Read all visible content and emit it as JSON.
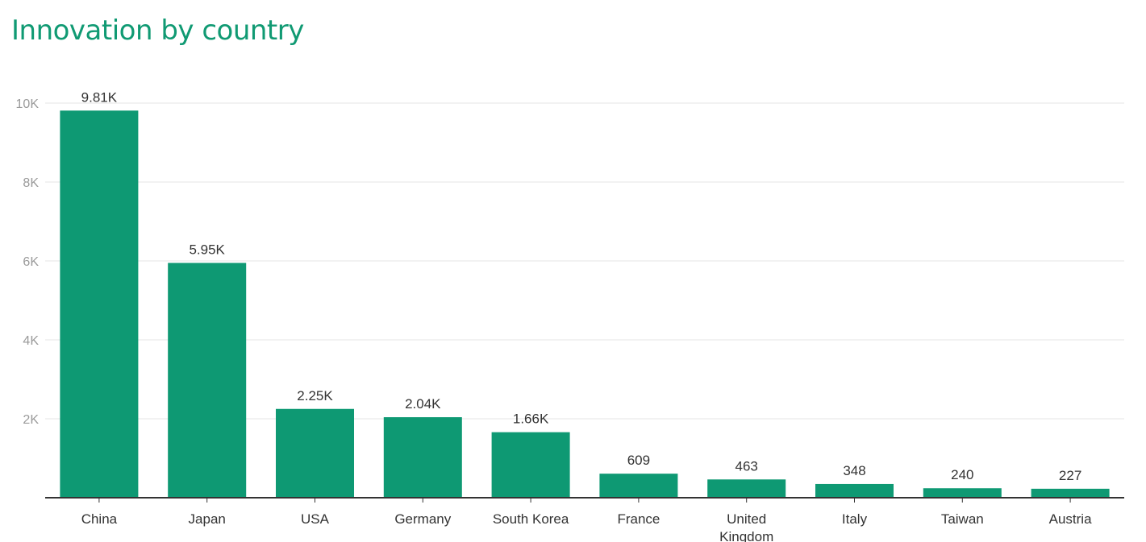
{
  "chart_data": {
    "type": "bar",
    "title": "Innovation by country",
    "categories": [
      "China",
      "Japan",
      "USA",
      "Germany",
      "South Korea",
      "France",
      "United Kingdom",
      "Italy",
      "Taiwan",
      "Austria"
    ],
    "x_tick_lines": [
      [
        "China"
      ],
      [
        "Japan"
      ],
      [
        "USA"
      ],
      [
        "Germany"
      ],
      [
        "South Korea"
      ],
      [
        "France"
      ],
      [
        "United",
        "Kingdom"
      ],
      [
        "Italy"
      ],
      [
        "Taiwan"
      ],
      [
        "Austria"
      ]
    ],
    "values": [
      9810,
      5950,
      2250,
      2040,
      1660,
      609,
      463,
      348,
      240,
      227
    ],
    "data_labels": [
      "9.81K",
      "5.95K",
      "2.25K",
      "2.04K",
      "1.66K",
      "609",
      "463",
      "348",
      "240",
      "227"
    ],
    "y_ticks": [
      2000,
      4000,
      6000,
      8000,
      10000
    ],
    "y_tick_labels": [
      "2K",
      "4K",
      "6K",
      "8K",
      "10K"
    ],
    "ylim": [
      0,
      10000
    ],
    "grid": true,
    "legend": "none",
    "colors": {
      "bar": "#0e9973",
      "title": "#109a73",
      "grid": "#e4e4e4",
      "axis": "#333333"
    }
  }
}
